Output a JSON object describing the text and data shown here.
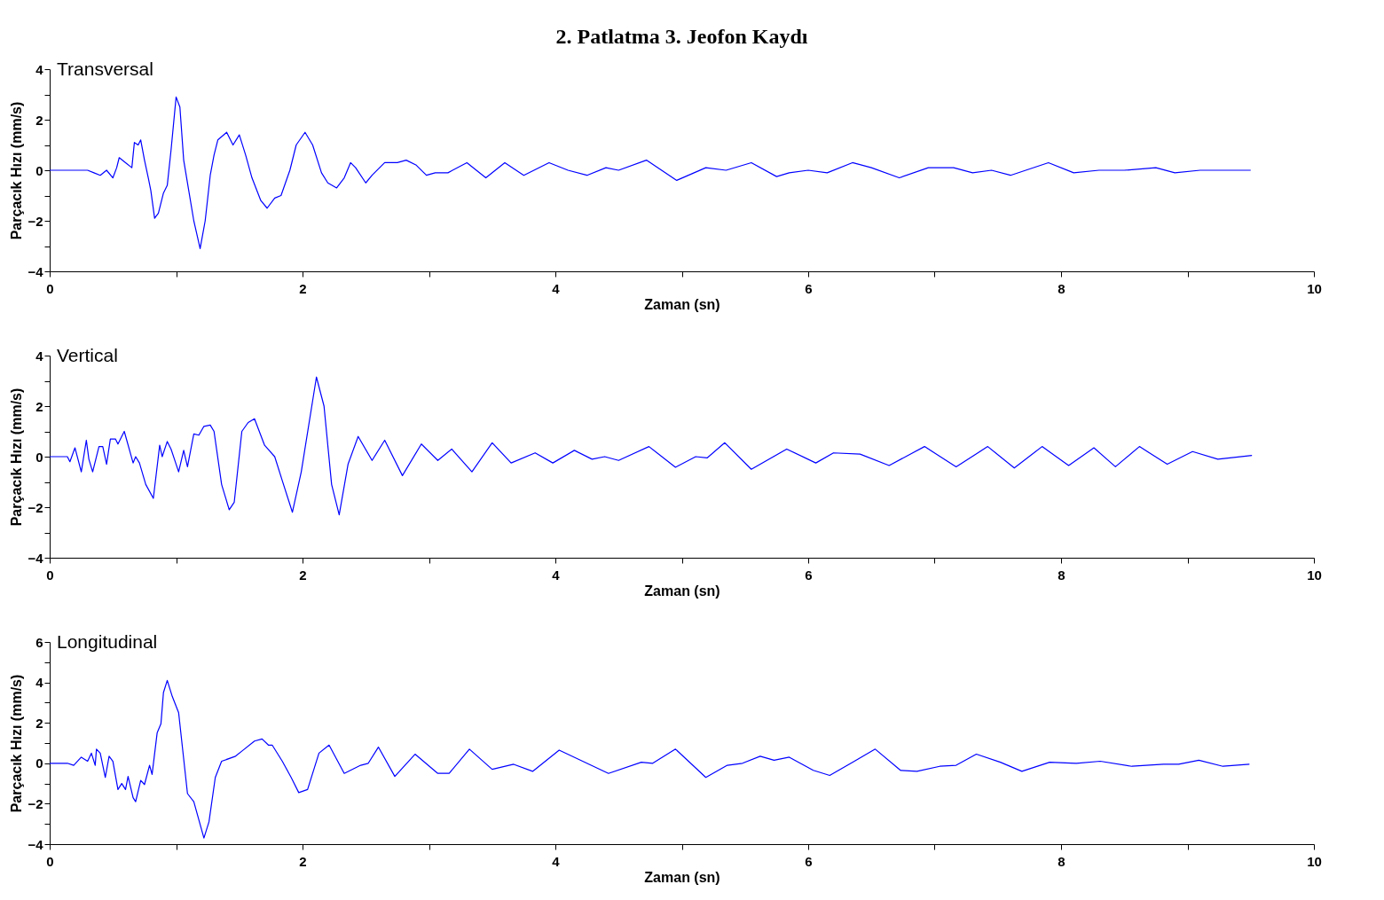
{
  "chart_data": [
    {
      "type": "line",
      "title": "2. Patlatma 3. Jeofon Kaydı",
      "xlabel": "Zaman (sn)",
      "ylabel": "Parçacık Hızı (mm/s)",
      "xlim": [
        0,
        10
      ],
      "ylim": [
        -4,
        4
      ],
      "xticks": [
        0,
        {
          "value": 1,
          "label": null
        },
        2,
        {
          "value": 3,
          "label": null
        },
        4,
        {
          "value": 5,
          "label": null
        },
        6,
        {
          "value": 7,
          "label": null
        },
        8,
        {
          "value": 9,
          "label": null
        },
        10
      ],
      "yticks": [
        -4,
        {
          "value": -3,
          "label": null
        },
        -2,
        {
          "value": -1,
          "label": null
        },
        0,
        {
          "value": 1,
          "label": null
        },
        2,
        {
          "value": 3,
          "label": null
        },
        4
      ],
      "grid": false,
      "marker": "none",
      "line_style": "solid",
      "series": [
        {
          "name": "Transversal",
          "color": "#0000ff",
          "x": [
            0,
            0.3,
            0.35,
            0.4,
            0.45,
            0.5,
            0.53,
            0.55,
            0.6,
            0.65,
            0.67,
            0.7,
            0.72,
            0.75,
            0.78,
            0.8,
            0.83,
            0.86,
            0.9,
            0.93,
            0.96,
            1.0,
            1.03,
            1.06,
            1.1,
            1.14,
            1.19,
            1.23,
            1.27,
            1.3,
            1.33,
            1.4,
            1.45,
            1.5,
            1.55,
            1.6,
            1.67,
            1.72,
            1.78,
            1.83,
            1.9,
            1.95,
            2.02,
            2.08,
            2.15,
            2.2,
            2.27,
            2.33,
            2.38,
            2.42,
            2.5,
            2.55,
            2.65,
            2.75,
            2.82,
            2.9,
            2.98,
            3.05,
            3.15,
            3.3,
            3.45,
            3.6,
            3.75,
            3.95,
            4.1,
            4.25,
            4.4,
            4.5,
            4.72,
            4.96,
            5.19,
            5.35,
            5.55,
            5.75,
            5.85,
            6.0,
            6.15,
            6.35,
            6.5,
            6.72,
            6.95,
            7.05,
            7.15,
            7.3,
            7.45,
            7.6,
            7.9,
            8.1,
            8.3,
            8.5,
            8.75,
            8.9,
            9.1,
            9.5
          ],
          "values": [
            0,
            0,
            -0.1,
            -0.2,
            0,
            -0.3,
            0.1,
            0.5,
            0.3,
            0.1,
            1.1,
            1.0,
            1.2,
            0.4,
            -0.3,
            -0.8,
            -1.9,
            -1.7,
            -0.9,
            -0.6,
            0.8,
            2.9,
            2.5,
            0.4,
            -0.8,
            -2.0,
            -3.1,
            -2.0,
            -0.2,
            0.6,
            1.2,
            1.5,
            1.0,
            1.4,
            0.6,
            -0.3,
            -1.2,
            -1.5,
            -1.1,
            -1.0,
            0.0,
            1.0,
            1.5,
            1.0,
            -0.1,
            -0.5,
            -0.7,
            -0.3,
            0.3,
            0.1,
            -0.5,
            -0.2,
            0.3,
            0.3,
            0.4,
            0.2,
            -0.2,
            -0.1,
            -0.1,
            0.3,
            -0.3,
            0.3,
            -0.2,
            0.3,
            0.0,
            -0.2,
            0.1,
            0.0,
            0.4,
            -0.4,
            0.1,
            0.0,
            0.3,
            -0.25,
            -0.1,
            0.0,
            -0.1,
            0.3,
            0.1,
            -0.3,
            0.1,
            0.1,
            0.1,
            -0.1,
            0.0,
            -0.2,
            0.3,
            -0.1,
            0.0,
            0.0,
            0.1,
            -0.1,
            0.0,
            0.0
          ]
        }
      ]
    },
    {
      "type": "line",
      "xlabel": "Zaman (sn)",
      "ylabel": "Parçacık Hızı (mm/s)",
      "xlim": [
        0,
        10
      ],
      "ylim": [
        -4,
        4
      ],
      "xticks": [
        0,
        {
          "value": 1,
          "label": null
        },
        2,
        {
          "value": 3,
          "label": null
        },
        4,
        {
          "value": 5,
          "label": null
        },
        6,
        {
          "value": 7,
          "label": null
        },
        8,
        {
          "value": 9,
          "label": null
        },
        10
      ],
      "yticks": [
        -4,
        {
          "value": -3,
          "label": null
        },
        -2,
        {
          "value": -1,
          "label": null
        },
        0,
        {
          "value": 1,
          "label": null
        },
        2,
        {
          "value": 3,
          "label": null
        },
        4
      ],
      "grid": false,
      "marker": "none",
      "line_style": "solid",
      "series": [
        {
          "name": "Vertical",
          "color": "#0000ff",
          "x": [
            0,
            0.14,
            0.16,
            0.2,
            0.25,
            0.29,
            0.31,
            0.34,
            0.39,
            0.42,
            0.45,
            0.48,
            0.52,
            0.54,
            0.59,
            0.66,
            0.68,
            0.71,
            0.76,
            0.82,
            0.87,
            0.89,
            0.93,
            0.96,
            1.02,
            1.06,
            1.09,
            1.14,
            1.18,
            1.22,
            1.27,
            1.3,
            1.36,
            1.42,
            1.46,
            1.52,
            1.57,
            1.62,
            1.7,
            1.78,
            1.84,
            1.92,
            1.99,
            2.11,
            2.17,
            2.23,
            2.29,
            2.36,
            2.44,
            2.55,
            2.65,
            2.79,
            2.94,
            3.07,
            3.18,
            3.34,
            3.5,
            3.65,
            3.84,
            3.98,
            4.15,
            4.29,
            4.39,
            4.5,
            4.74,
            4.95,
            5.11,
            5.2,
            5.34,
            5.55,
            5.83,
            6.06,
            6.2,
            6.41,
            6.64,
            6.92,
            7.17,
            7.42,
            7.63,
            7.85,
            8.06,
            8.26,
            8.43,
            8.62,
            8.84,
            9.04,
            9.24,
            9.51
          ],
          "values": [
            0,
            0,
            -0.2,
            0.35,
            -0.6,
            0.65,
            -0.1,
            -0.6,
            0.4,
            0.4,
            -0.3,
            0.7,
            0.7,
            0.5,
            1.0,
            -0.25,
            0,
            -0.25,
            -1.1,
            -1.65,
            0.45,
            0,
            0.6,
            0.3,
            -0.6,
            0.25,
            -0.4,
            0.9,
            0.85,
            1.2,
            1.25,
            1.0,
            -1.1,
            -2.1,
            -1.8,
            1.0,
            1.35,
            1.5,
            0.45,
            0,
            -0.95,
            -2.2,
            -0.6,
            3.15,
            2.0,
            -1.1,
            -2.3,
            -0.3,
            0.8,
            -0.15,
            0.65,
            -0.75,
            0.5,
            -0.15,
            0.3,
            -0.6,
            0.55,
            -0.25,
            0.15,
            -0.25,
            0.25,
            -0.1,
            0.0,
            -0.15,
            0.4,
            -0.42,
            0,
            -0.05,
            0.55,
            -0.5,
            0.3,
            -0.25,
            0.15,
            0.1,
            -0.35,
            0.4,
            -0.4,
            0.4,
            -0.45,
            0.4,
            -0.35,
            0.35,
            -0.4,
            0.4,
            -0.3,
            0.2,
            -0.1,
            0.05
          ]
        }
      ]
    },
    {
      "type": "line",
      "xlabel": "Zaman (sn)",
      "ylabel": "Parçacık Hızı (mm/s)",
      "xlim": [
        0,
        10
      ],
      "ylim": [
        -4,
        6
      ],
      "xticks": [
        0,
        {
          "value": 1,
          "label": null
        },
        2,
        {
          "value": 3,
          "label": null
        },
        4,
        {
          "value": 5,
          "label": null
        },
        6,
        {
          "value": 7,
          "label": null
        },
        8,
        {
          "value": 9,
          "label": null
        },
        10
      ],
      "yticks": [
        -4,
        {
          "value": -3,
          "label": null
        },
        -2,
        {
          "value": -1,
          "label": null
        },
        0,
        {
          "value": 1,
          "label": null
        },
        2,
        {
          "value": 3,
          "label": null
        },
        4,
        {
          "value": 5,
          "label": null
        },
        6
      ],
      "grid": false,
      "marker": "none",
      "line_style": "solid",
      "series": [
        {
          "name": "Longitudinal",
          "color": "#0000ff",
          "x": [
            0,
            0.14,
            0.19,
            0.25,
            0.3,
            0.33,
            0.36,
            0.37,
            0.4,
            0.44,
            0.47,
            0.5,
            0.54,
            0.57,
            0.6,
            0.62,
            0.66,
            0.68,
            0.72,
            0.75,
            0.79,
            0.81,
            0.85,
            0.88,
            0.9,
            0.93,
            0.97,
            1.02,
            1.09,
            1.14,
            1.22,
            1.26,
            1.31,
            1.36,
            1.47,
            1.52,
            1.62,
            1.68,
            1.73,
            1.76,
            1.84,
            1.91,
            1.97,
            2.04,
            2.13,
            2.21,
            2.33,
            2.46,
            2.52,
            2.6,
            2.73,
            2.89,
            3.07,
            3.16,
            3.32,
            3.5,
            3.67,
            3.82,
            4.03,
            4.42,
            4.68,
            4.77,
            4.95,
            5.19,
            5.36,
            5.48,
            5.62,
            5.73,
            5.85,
            6.04,
            6.17,
            6.35,
            6.53,
            6.73,
            6.86,
            7.04,
            7.17,
            7.33,
            7.52,
            7.69,
            7.91,
            8.12,
            8.31,
            8.56,
            8.81,
            8.93,
            9.09,
            9.28,
            9.49
          ],
          "values": [
            0,
            0,
            -0.1,
            0.3,
            0.1,
            0.5,
            -0.1,
            0.7,
            0.5,
            -0.7,
            0.35,
            0.1,
            -1.3,
            -1.0,
            -1.3,
            -0.65,
            -1.7,
            -1.9,
            -0.85,
            -1.05,
            -0.1,
            -0.55,
            1.5,
            1.95,
            3.5,
            4.1,
            3.3,
            2.5,
            -1.5,
            -1.9,
            -3.7,
            -2.9,
            -0.7,
            0.1,
            0.35,
            0.6,
            1.1,
            1.2,
            0.9,
            0.9,
            0.1,
            -0.7,
            -1.45,
            -1.3,
            0.5,
            0.9,
            -0.5,
            -0.1,
            0,
            0.8,
            -0.65,
            0.45,
            -0.5,
            -0.5,
            0.7,
            -0.3,
            -0.05,
            -0.4,
            0.65,
            -0.5,
            0.05,
            0,
            0.7,
            -0.7,
            -0.1,
            0,
            0.35,
            0.15,
            0.3,
            -0.35,
            -0.6,
            0.05,
            0.7,
            -0.35,
            -0.4,
            -0.15,
            -0.1,
            0.45,
            0.05,
            -0.4,
            0.05,
            0,
            0.1,
            -0.15,
            -0.05,
            -0.05,
            0.15,
            -0.15,
            -0.05
          ]
        }
      ]
    }
  ]
}
